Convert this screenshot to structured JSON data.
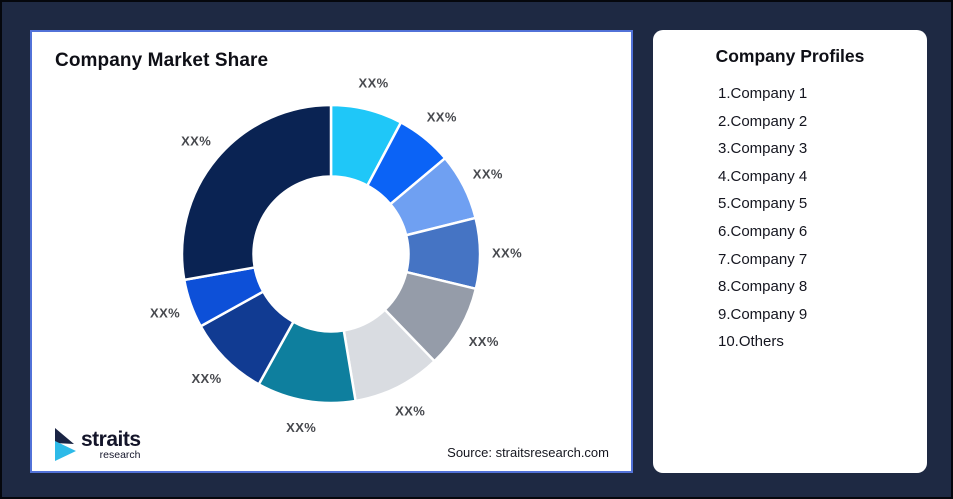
{
  "window": {
    "background_color": "#1E2943",
    "outer_border_color": "#000000"
  },
  "market_share_card": {
    "title": "Company Market Share",
    "source_text": "Source: straitsresearch.com",
    "border_color": "#5272D8",
    "logo": {
      "brand": "straits",
      "subtitle": "research",
      "navy": "#1A2444",
      "cyan": "#2DBAE8"
    }
  },
  "profiles_card": {
    "title": "Company Profiles",
    "items": [
      "1.Company 1",
      "2.Company 2",
      "3.Company 3",
      "4.Company 4",
      "5.Company 5",
      "6.Company 6",
      "7.Company 7",
      "8.Company 8",
      "9.Company 9",
      "10.Others"
    ]
  },
  "chart_data": {
    "type": "pie",
    "subtype": "donut",
    "title": "Company Market Share",
    "start_angle_deg": 0,
    "clockwise": true,
    "inner_radius_ratio": 0.52,
    "gap_stroke_color": "#ffffff",
    "label_text_all_segments": "XX%",
    "label_color": "#47494E",
    "segments": [
      {
        "name": "Company 1",
        "label": "XX%",
        "angle_deg": 28.0,
        "percent_est": 7.8,
        "color": "#1FC7F8"
      },
      {
        "name": "Company 2",
        "label": "XX%",
        "angle_deg": 22.0,
        "percent_est": 6.1,
        "color": "#0B63F6"
      },
      {
        "name": "Company 3",
        "label": "XX%",
        "angle_deg": 26.0,
        "percent_est": 7.2,
        "color": "#6FA0F2"
      },
      {
        "name": "Company 4",
        "label": "XX%",
        "angle_deg": 27.5,
        "percent_est": 7.6,
        "color": "#4574C4"
      },
      {
        "name": "Company 5",
        "label": "XX%",
        "angle_deg": 32.5,
        "percent_est": 9.0,
        "color": "#959CA9"
      },
      {
        "name": "Company 6",
        "label": "XX%",
        "angle_deg": 34.5,
        "percent_est": 9.6,
        "color": "#D9DCE1"
      },
      {
        "name": "Company 7",
        "label": "XX%",
        "angle_deg": 38.5,
        "percent_est": 10.7,
        "color": "#0E7F9E"
      },
      {
        "name": "Company 8",
        "label": "XX%",
        "angle_deg": 32.0,
        "percent_est": 8.9,
        "color": "#113B92"
      },
      {
        "name": "Company 9",
        "label": "XX%",
        "angle_deg": 19.0,
        "percent_est": 5.3,
        "color": "#0D50D8"
      },
      {
        "name": "Others",
        "label": "XX%",
        "angle_deg": 100.0,
        "percent_est": 27.8,
        "color": "#0A2353"
      }
    ]
  }
}
